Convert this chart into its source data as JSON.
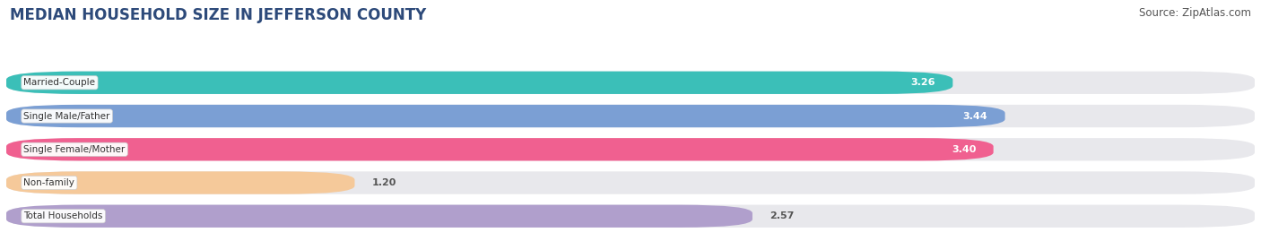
{
  "title": "MEDIAN HOUSEHOLD SIZE IN JEFFERSON COUNTY",
  "source": "Source: ZipAtlas.com",
  "categories": [
    "Married-Couple",
    "Single Male/Father",
    "Single Female/Mother",
    "Non-family",
    "Total Households"
  ],
  "values": [
    3.26,
    3.44,
    3.4,
    1.2,
    2.57
  ],
  "bar_colors": [
    "#3bbfb8",
    "#7b9fd4",
    "#f06090",
    "#f5c99a",
    "#b09fcc"
  ],
  "value_label_colors": [
    "white",
    "white",
    "white",
    "#555555",
    "#555555"
  ],
  "xlim": [
    0,
    4.3
  ],
  "xmin": 0,
  "xticks": [
    1.0,
    2.5,
    4.0
  ],
  "background_color": "#ffffff",
  "bar_background": "#e8e8ec",
  "title_fontsize": 12,
  "source_fontsize": 8.5,
  "bar_height": 0.68,
  "bar_gap": 0.32
}
